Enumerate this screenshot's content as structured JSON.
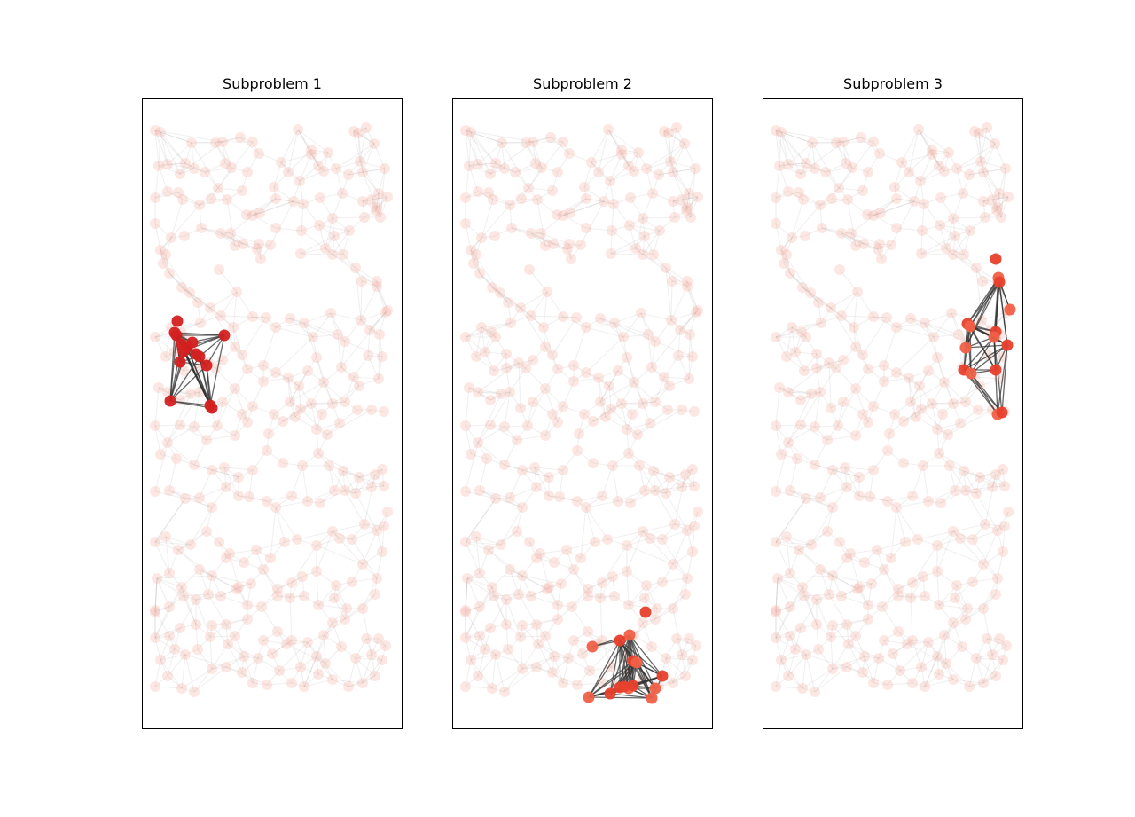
{
  "panels": [
    {
      "title": "Subproblem 1",
      "highlight": "cluster-left"
    },
    {
      "title": "Subproblem 2",
      "highlight": "cluster-bottom"
    },
    {
      "title": "Subproblem 3",
      "highlight": "cluster-right"
    }
  ],
  "colors": {
    "background_node": "#f4a89a",
    "background_edge": "#555555",
    "highlight_node_dark": "#d42020",
    "highlight_node_light": "#f06048",
    "highlight_edge": "#333333",
    "frame": "#000000"
  }
}
